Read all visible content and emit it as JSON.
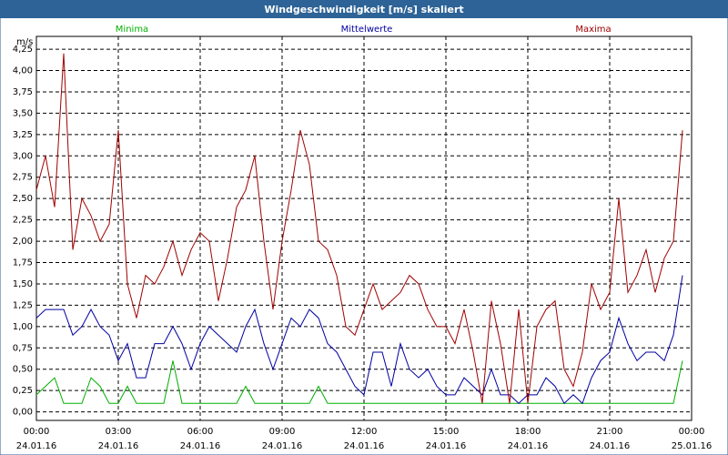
{
  "chart_data": {
    "type": "line",
    "title": "Windgeschwindigkeit [m/s] skaliert",
    "y_label": "m/s",
    "x": [
      0,
      20,
      40,
      60,
      80,
      100,
      120,
      140,
      160,
      180,
      200,
      220,
      240,
      260,
      280,
      300,
      320,
      340,
      360,
      380,
      400,
      420,
      440,
      460,
      480,
      500,
      520,
      540,
      560,
      580,
      600,
      620,
      640,
      660,
      680,
      700,
      720,
      740,
      760,
      780,
      800,
      820,
      840,
      860,
      880,
      900,
      920,
      940,
      960,
      980,
      1000,
      1020,
      1040,
      1060,
      1080,
      1100,
      1120,
      1140,
      1160,
      1180,
      1200,
      1220,
      1240,
      1260,
      1280,
      1300,
      1320,
      1340,
      1360,
      1380,
      1400,
      1420
    ],
    "series": [
      {
        "name": "Minima",
        "color": "#00b000",
        "values": [
          0.2,
          0.3,
          0.4,
          0.1,
          0.1,
          0.1,
          0.4,
          0.3,
          0.1,
          0.1,
          0.3,
          0.1,
          0.1,
          0.1,
          0.1,
          0.6,
          0.1,
          0.1,
          0.1,
          0.1,
          0.1,
          0.1,
          0.1,
          0.3,
          0.1,
          0.1,
          0.1,
          0.1,
          0.1,
          0.1,
          0.1,
          0.3,
          0.1,
          0.1,
          0.1,
          0.1,
          0.1,
          0.1,
          0.1,
          0.1,
          0.1,
          0.1,
          0.1,
          0.1,
          0.1,
          0.1,
          0.1,
          0.1,
          0.1,
          0.1,
          0.1,
          0.1,
          0.1,
          0.1,
          0.1,
          0.1,
          0.1,
          0.1,
          0.1,
          0.1,
          0.1,
          0.1,
          0.1,
          0.1,
          0.1,
          0.1,
          0.1,
          0.1,
          0.1,
          0.1,
          0.1,
          0.6
        ]
      },
      {
        "name": "Mittelwerte",
        "color": "#0000a0",
        "values": [
          1.1,
          1.2,
          1.2,
          1.2,
          0.9,
          1.0,
          1.2,
          1.0,
          0.9,
          0.6,
          0.8,
          0.4,
          0.4,
          0.8,
          0.8,
          1.0,
          0.8,
          0.5,
          0.8,
          1.0,
          0.9,
          0.8,
          0.7,
          1.0,
          1.2,
          0.8,
          0.5,
          0.8,
          1.1,
          1.0,
          1.2,
          1.1,
          0.8,
          0.7,
          0.5,
          0.3,
          0.2,
          0.7,
          0.7,
          0.3,
          0.8,
          0.5,
          0.4,
          0.5,
          0.3,
          0.2,
          0.2,
          0.4,
          0.3,
          0.2,
          0.5,
          0.2,
          0.2,
          0.1,
          0.2,
          0.2,
          0.4,
          0.3,
          0.1,
          0.2,
          0.1,
          0.4,
          0.6,
          0.7,
          1.1,
          0.8,
          0.6,
          0.7,
          0.7,
          0.6,
          0.9,
          1.6
        ]
      },
      {
        "name": "Maxima",
        "color": "#a00000",
        "values": [
          2.6,
          3.0,
          2.4,
          4.2,
          1.9,
          2.5,
          2.3,
          2.0,
          2.2,
          3.3,
          1.5,
          1.1,
          1.6,
          1.5,
          1.7,
          2.0,
          1.6,
          1.9,
          2.1,
          2.0,
          1.3,
          1.8,
          2.4,
          2.6,
          3.0,
          2.0,
          1.2,
          2.0,
          2.6,
          3.3,
          2.9,
          2.0,
          1.9,
          1.6,
          1.0,
          0.9,
          1.2,
          1.5,
          1.2,
          1.3,
          1.4,
          1.6,
          1.5,
          1.2,
          1.0,
          1.0,
          0.8,
          1.2,
          0.7,
          0.1,
          1.3,
          0.8,
          0.1,
          1.2,
          0.1,
          1.0,
          1.2,
          1.3,
          0.5,
          0.3,
          0.7,
          1.5,
          1.2,
          1.4,
          2.5,
          1.4,
          1.6,
          1.9,
          1.4,
          1.8,
          2.0,
          3.3
        ]
      }
    ],
    "xlim": [
      0,
      1440
    ],
    "xticks": [
      {
        "value": 0,
        "label": "00:00",
        "date": "24.01.16"
      },
      {
        "value": 180,
        "label": "03:00",
        "date": "24.01.16"
      },
      {
        "value": 360,
        "label": "06:00",
        "date": "24.01.16"
      },
      {
        "value": 540,
        "label": "09:00",
        "date": "24.01.16"
      },
      {
        "value": 720,
        "label": "12:00",
        "date": "24.01.16"
      },
      {
        "value": 900,
        "label": "15:00",
        "date": "24.01.16"
      },
      {
        "value": 1080,
        "label": "18:00",
        "date": "24.01.16"
      },
      {
        "value": 1260,
        "label": "21:00",
        "date": "24.01.16"
      },
      {
        "value": 1440,
        "label": "00:00",
        "date": "25.01.16"
      }
    ],
    "ylim": [
      -0.1,
      4.4
    ],
    "yticks": [
      {
        "value": 0,
        "label": "0,00"
      },
      {
        "value": 0.25,
        "label": "0,25"
      },
      {
        "value": 0.5,
        "label": "0,50"
      },
      {
        "value": 0.75,
        "label": "0,75"
      },
      {
        "value": 1,
        "label": "1,00"
      },
      {
        "value": 1.25,
        "label": "1,25"
      },
      {
        "value": 1.5,
        "label": "1,50"
      },
      {
        "value": 1.75,
        "label": "1,75"
      },
      {
        "value": 2,
        "label": "2,00"
      },
      {
        "value": 2.25,
        "label": "2,25"
      },
      {
        "value": 2.5,
        "label": "2,50"
      },
      {
        "value": 2.75,
        "label": "2,75"
      },
      {
        "value": 3,
        "label": "3,00"
      },
      {
        "value": 3.25,
        "label": "3,25"
      },
      {
        "value": 3.5,
        "label": "3,50"
      },
      {
        "value": 3.75,
        "label": "3,75"
      },
      {
        "value": 4,
        "label": "4,00"
      },
      {
        "value": 4.25,
        "label": "4,25"
      }
    ],
    "grid": true,
    "legend": "top"
  }
}
